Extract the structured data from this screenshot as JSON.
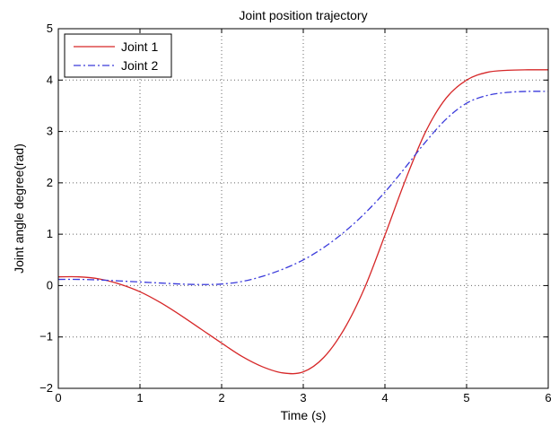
{
  "chart_data": {
    "type": "line",
    "title": "Joint position trajectory",
    "xlabel": "Time (s)",
    "ylabel": "Joint angle degree(rad)",
    "xlim": [
      0,
      6
    ],
    "ylim": [
      -2,
      5
    ],
    "xticks": [
      0,
      1,
      2,
      3,
      4,
      5,
      6
    ],
    "yticks": [
      -2,
      -1,
      0,
      1,
      2,
      3,
      4,
      5
    ],
    "grid": true,
    "legend_position": "top-left",
    "series": [
      {
        "name": "Joint 1",
        "color": "#d62728",
        "line_style": "solid",
        "x": [
          0,
          0.25,
          0.5,
          0.75,
          1,
          1.25,
          1.5,
          1.75,
          2,
          2.25,
          2.5,
          2.75,
          3,
          3.25,
          3.5,
          3.75,
          4,
          4.25,
          4.5,
          4.75,
          5,
          5.25,
          5.5,
          5.75,
          6
        ],
        "y": [
          0.17,
          0.17,
          0.13,
          0.03,
          -0.12,
          -0.33,
          -0.58,
          -0.85,
          -1.12,
          -1.38,
          -1.58,
          -1.7,
          -1.68,
          -1.4,
          -0.85,
          -0.05,
          0.98,
          2.05,
          3.0,
          3.65,
          4.0,
          4.15,
          4.19,
          4.2,
          4.2
        ]
      },
      {
        "name": "Joint 2",
        "color": "#3a3adb",
        "line_style": "dashdot",
        "x": [
          0,
          0.25,
          0.5,
          0.75,
          1,
          1.25,
          1.5,
          1.75,
          2,
          2.25,
          2.5,
          2.75,
          3,
          3.25,
          3.5,
          3.75,
          4,
          4.25,
          4.5,
          4.75,
          5,
          5.25,
          5.5,
          5.75,
          6
        ],
        "y": [
          0.12,
          0.12,
          0.11,
          0.09,
          0.07,
          0.05,
          0.03,
          0.02,
          0.03,
          0.08,
          0.18,
          0.32,
          0.5,
          0.74,
          1.04,
          1.4,
          1.82,
          2.3,
          2.8,
          3.24,
          3.55,
          3.7,
          3.76,
          3.78,
          3.78
        ]
      }
    ]
  }
}
